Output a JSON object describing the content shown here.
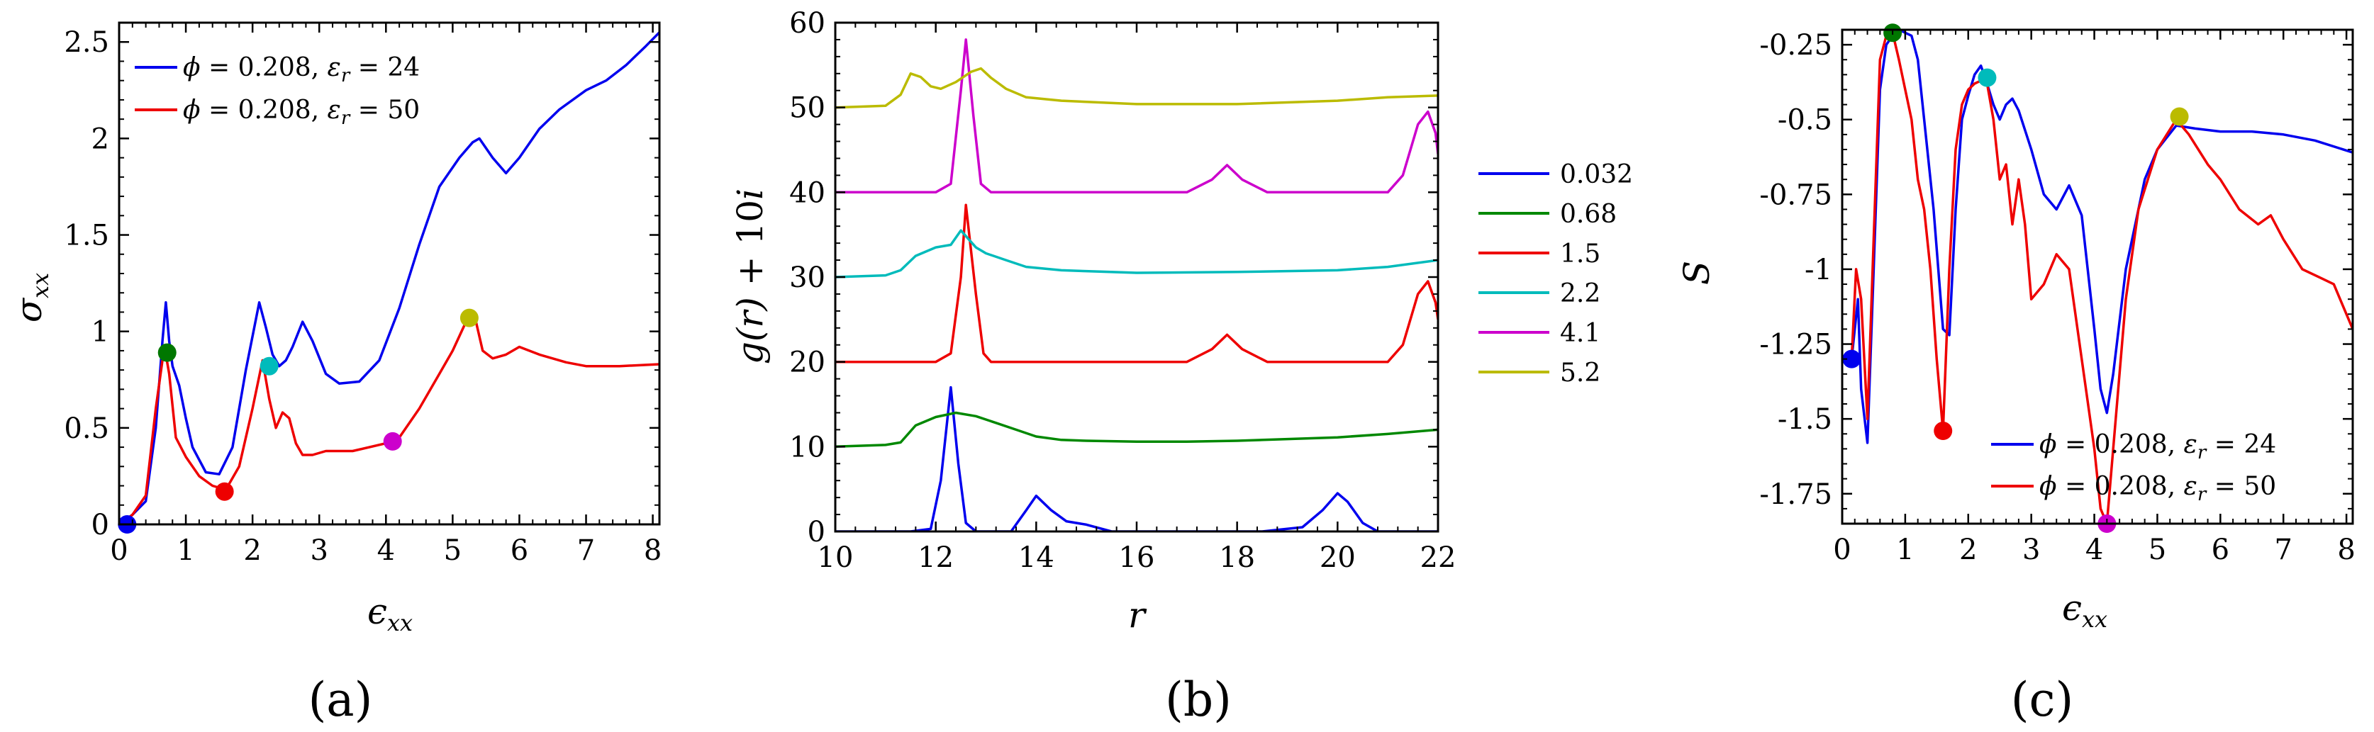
{
  "chart_data": [
    {
      "type": "line",
      "panel_label": "(a)",
      "xlabel": "ϵxx",
      "ylabel": "σxx",
      "xlim": [
        0,
        8.1
      ],
      "ylim": [
        0,
        2.6
      ],
      "xticks": [
        "0",
        "1",
        "2",
        "3",
        "4",
        "5",
        "6",
        "7",
        "8"
      ],
      "yticks": [
        "0",
        "0.5",
        "1",
        "1.5",
        "2",
        "2.5"
      ],
      "legend_position": "top-left",
      "series": [
        {
          "name": "ϕ = 0.208, εr = 24",
          "legend_parts": [
            "ϕ",
            " = 0.208, ",
            "ε",
            "r",
            " = 24"
          ],
          "color": "#0000ee",
          "x": [
            0,
            0.2,
            0.4,
            0.55,
            0.65,
            0.7,
            0.75,
            0.8,
            0.9,
            1.0,
            1.1,
            1.3,
            1.5,
            1.7,
            1.9,
            2.1,
            2.2,
            2.3,
            2.4,
            2.5,
            2.6,
            2.75,
            2.9,
            3.1,
            3.3,
            3.6,
            3.9,
            4.2,
            4.5,
            4.8,
            5.1,
            5.3,
            5.4,
            5.6,
            5.8,
            6.0,
            6.3,
            6.6,
            7.0,
            7.3,
            7.6,
            7.9,
            8.1
          ],
          "y": [
            0,
            0.05,
            0.12,
            0.5,
            0.95,
            1.15,
            0.95,
            0.82,
            0.72,
            0.55,
            0.4,
            0.27,
            0.26,
            0.4,
            0.8,
            1.15,
            1.02,
            0.88,
            0.82,
            0.85,
            0.92,
            1.05,
            0.95,
            0.78,
            0.73,
            0.74,
            0.85,
            1.12,
            1.45,
            1.75,
            1.9,
            1.98,
            2.0,
            1.9,
            1.82,
            1.9,
            2.05,
            2.15,
            2.25,
            2.3,
            2.38,
            2.48,
            2.55
          ]
        },
        {
          "name": "ϕ = 0.208, εr = 50",
          "legend_parts": [
            "ϕ",
            " = 0.208, ",
            "ε",
            "r",
            " = 50"
          ],
          "color": "#ee0000",
          "x": [
            0,
            0.2,
            0.4,
            0.55,
            0.65,
            0.7,
            0.75,
            0.85,
            1.0,
            1.2,
            1.4,
            1.6,
            1.8,
            2.0,
            2.15,
            2.25,
            2.35,
            2.45,
            2.55,
            2.65,
            2.75,
            2.9,
            3.1,
            3.5,
            4.0,
            4.2,
            4.5,
            4.8,
            5.0,
            5.2,
            5.35,
            5.45,
            5.6,
            5.8,
            6.0,
            6.3,
            6.7,
            7.0,
            7.5,
            8.1
          ],
          "y": [
            0,
            0.05,
            0.15,
            0.6,
            0.85,
            0.88,
            0.78,
            0.45,
            0.35,
            0.25,
            0.2,
            0.18,
            0.3,
            0.6,
            0.85,
            0.65,
            0.5,
            0.58,
            0.55,
            0.42,
            0.36,
            0.36,
            0.38,
            0.38,
            0.42,
            0.45,
            0.6,
            0.78,
            0.9,
            1.05,
            1.05,
            0.9,
            0.86,
            0.88,
            0.92,
            0.88,
            0.84,
            0.82,
            0.82,
            0.83
          ]
        }
      ],
      "markers": [
        {
          "x": 0.12,
          "y": 0.0,
          "color": "#0000ee"
        },
        {
          "x": 0.72,
          "y": 0.89,
          "color": "#007700"
        },
        {
          "x": 1.58,
          "y": 0.17,
          "color": "#ee0000"
        },
        {
          "x": 2.25,
          "y": 0.82,
          "color": "#00bbbb"
        },
        {
          "x": 4.1,
          "y": 0.43,
          "color": "#cc00cc"
        },
        {
          "x": 5.25,
          "y": 1.07,
          "color": "#bbbb00"
        }
      ]
    },
    {
      "type": "line",
      "panel_label": "(b)",
      "xlabel": "r",
      "ylabel": "g(r) + 10i",
      "xlim": [
        10,
        22
      ],
      "ylim": [
        0,
        60
      ],
      "xticks": [
        "10",
        "12",
        "14",
        "16",
        "18",
        "20",
        "22"
      ],
      "yticks": [
        "0",
        "10",
        "20",
        "30",
        "40",
        "50",
        "60"
      ],
      "legend_position": "outside-right",
      "series": [
        {
          "name": "0.032",
          "color": "#0000ee",
          "x": [
            10,
            11.5,
            11.9,
            12.1,
            12.3,
            12.45,
            12.6,
            12.8,
            13.5,
            13.8,
            14.0,
            14.3,
            14.6,
            15.0,
            15.5,
            16.5,
            18.5,
            19.3,
            19.7,
            20.0,
            20.2,
            20.5,
            20.8,
            22
          ],
          "y": [
            0,
            0,
            0.3,
            6,
            17,
            8,
            1,
            0,
            0,
            2.5,
            4.2,
            2.5,
            1.2,
            0.8,
            0,
            0,
            0,
            0.5,
            2.5,
            4.5,
            3.5,
            1,
            0,
            0
          ]
        },
        {
          "name": "0.68",
          "color": "#008800",
          "x": [
            10,
            11.0,
            11.3,
            11.6,
            12.0,
            12.4,
            12.8,
            13.2,
            13.6,
            14.0,
            14.5,
            15,
            16,
            17,
            18,
            19,
            20,
            21,
            22
          ],
          "y": [
            10,
            10.2,
            10.5,
            12.5,
            13.5,
            14,
            13.6,
            12.8,
            12,
            11.2,
            10.8,
            10.7,
            10.6,
            10.6,
            10.7,
            10.9,
            11.1,
            11.5,
            12
          ]
        },
        {
          "name": "1.5",
          "color": "#ee0000",
          "x": [
            10,
            12.0,
            12.3,
            12.5,
            12.6,
            12.8,
            12.95,
            13.1,
            15,
            17.0,
            17.5,
            17.8,
            18.1,
            18.6,
            19,
            21.0,
            21.3,
            21.6,
            21.8,
            21.95,
            22
          ],
          "y": [
            20,
            20,
            21,
            30,
            38.5,
            28,
            21,
            20,
            20,
            20,
            21.5,
            23.2,
            21.5,
            20,
            20,
            20,
            22,
            28,
            29.5,
            27,
            25
          ]
        },
        {
          "name": "2.2",
          "color": "#00bbbb",
          "x": [
            10,
            11.0,
            11.3,
            11.6,
            12.0,
            12.3,
            12.5,
            12.65,
            12.8,
            13.0,
            13.4,
            13.8,
            14.5,
            16,
            18,
            20,
            21,
            22
          ],
          "y": [
            30,
            30.2,
            30.8,
            32.5,
            33.5,
            33.8,
            35.5,
            34.5,
            33.5,
            32.8,
            32,
            31.2,
            30.8,
            30.5,
            30.6,
            30.8,
            31.2,
            32
          ]
        },
        {
          "name": "4.1",
          "color": "#cc00cc",
          "x": [
            10,
            12.0,
            12.3,
            12.5,
            12.6,
            12.75,
            12.9,
            13.1,
            15,
            17.0,
            17.5,
            17.8,
            18.1,
            18.6,
            19,
            21.0,
            21.3,
            21.6,
            21.8,
            21.95,
            22
          ],
          "y": [
            40,
            40,
            41,
            52,
            58,
            49,
            41,
            40,
            40,
            40,
            41.5,
            43.2,
            41.5,
            40,
            40,
            40,
            42,
            48,
            49.5,
            47,
            44.5
          ]
        },
        {
          "name": "5.2",
          "color": "#bbbb00",
          "x": [
            10,
            11.0,
            11.3,
            11.5,
            11.7,
            11.9,
            12.1,
            12.4,
            12.7,
            12.9,
            13.1,
            13.4,
            13.8,
            14.5,
            16,
            18,
            20,
            21,
            22
          ],
          "y": [
            50,
            50.2,
            51.5,
            54,
            53.6,
            52.5,
            52.2,
            53,
            54.2,
            54.6,
            53.5,
            52.2,
            51.2,
            50.8,
            50.4,
            50.4,
            50.8,
            51.2,
            51.4
          ]
        }
      ]
    },
    {
      "type": "line",
      "panel_label": "(c)",
      "xlabel": "ϵxx",
      "ylabel": "S",
      "xlim": [
        0,
        8.1
      ],
      "ylim": [
        -1.85,
        -0.2
      ],
      "xticks": [
        "0",
        "1",
        "2",
        "3",
        "4",
        "5",
        "6",
        "7",
        "8"
      ],
      "yticks": [
        "-0.25",
        "-0.5",
        "-0.75",
        "-1",
        "-1.25",
        "-1.5",
        "-1.75"
      ],
      "legend_position": "bottom-right",
      "series": [
        {
          "name": "ϕ = 0.208, εr = 24",
          "legend_parts": [
            "ϕ",
            " = 0.208, ",
            "ε",
            "r",
            " = 24"
          ],
          "color": "#0000ee",
          "x": [
            0.15,
            0.25,
            0.3,
            0.4,
            0.5,
            0.6,
            0.7,
            0.8,
            0.9,
            1.0,
            1.1,
            1.2,
            1.3,
            1.45,
            1.6,
            1.7,
            1.8,
            1.9,
            2.0,
            2.1,
            2.2,
            2.3,
            2.4,
            2.5,
            2.6,
            2.7,
            2.8,
            3.0,
            3.2,
            3.4,
            3.6,
            3.8,
            4.0,
            4.1,
            4.2,
            4.3,
            4.5,
            4.8,
            5.0,
            5.3,
            5.6,
            6.0,
            6.5,
            7.0,
            7.5,
            8.1
          ],
          "y": [
            -1.3,
            -1.1,
            -1.4,
            -1.58,
            -1.0,
            -0.4,
            -0.25,
            -0.22,
            -0.2,
            -0.21,
            -0.22,
            -0.3,
            -0.5,
            -0.8,
            -1.2,
            -1.22,
            -0.8,
            -0.5,
            -0.42,
            -0.35,
            -0.32,
            -0.38,
            -0.45,
            -0.5,
            -0.45,
            -0.43,
            -0.47,
            -0.6,
            -0.75,
            -0.8,
            -0.72,
            -0.82,
            -1.2,
            -1.4,
            -1.48,
            -1.35,
            -1.0,
            -0.7,
            -0.6,
            -0.52,
            -0.53,
            -0.54,
            -0.54,
            -0.55,
            -0.57,
            -0.61
          ]
        },
        {
          "name": "ϕ = 0.208, εr = 50",
          "legend_parts": [
            "ϕ",
            " = 0.208, ",
            "ε",
            "r",
            " = 50"
          ],
          "color": "#ee0000",
          "x": [
            0.15,
            0.22,
            0.3,
            0.4,
            0.5,
            0.6,
            0.7,
            0.8,
            0.9,
            1.0,
            1.1,
            1.2,
            1.3,
            1.4,
            1.5,
            1.6,
            1.7,
            1.8,
            1.9,
            2.0,
            2.1,
            2.2,
            2.3,
            2.4,
            2.5,
            2.6,
            2.7,
            2.8,
            2.9,
            3.0,
            3.2,
            3.4,
            3.6,
            3.8,
            4.0,
            4.1,
            4.2,
            4.3,
            4.5,
            4.7,
            5.0,
            5.3,
            5.5,
            5.8,
            6.0,
            6.3,
            6.6,
            6.8,
            7.0,
            7.3,
            7.6,
            7.8,
            8.1
          ],
          "y": [
            -1.3,
            -1.0,
            -1.1,
            -1.5,
            -0.9,
            -0.3,
            -0.22,
            -0.21,
            -0.3,
            -0.4,
            -0.5,
            -0.7,
            -0.8,
            -1.0,
            -1.3,
            -1.54,
            -1.0,
            -0.6,
            -0.45,
            -0.4,
            -0.38,
            -0.37,
            -0.38,
            -0.5,
            -0.7,
            -0.65,
            -0.85,
            -0.7,
            -0.85,
            -1.1,
            -1.05,
            -0.95,
            -1.0,
            -1.3,
            -1.6,
            -1.8,
            -1.85,
            -1.6,
            -1.1,
            -0.8,
            -0.6,
            -0.5,
            -0.55,
            -0.65,
            -0.7,
            -0.8,
            -0.85,
            -0.82,
            -0.9,
            -1.0,
            -1.03,
            -1.05,
            -1.2
          ]
        }
      ],
      "markers": [
        {
          "x": 0.15,
          "y": -1.3,
          "color": "#0000ee"
        },
        {
          "x": 0.8,
          "y": -0.21,
          "color": "#007700"
        },
        {
          "x": 1.6,
          "y": -1.54,
          "color": "#ee0000"
        },
        {
          "x": 2.3,
          "y": -0.36,
          "color": "#00bbbb"
        },
        {
          "x": 4.2,
          "y": -1.85,
          "color": "#cc00cc"
        },
        {
          "x": 5.35,
          "y": -0.49,
          "color": "#bbbb00"
        }
      ]
    }
  ]
}
